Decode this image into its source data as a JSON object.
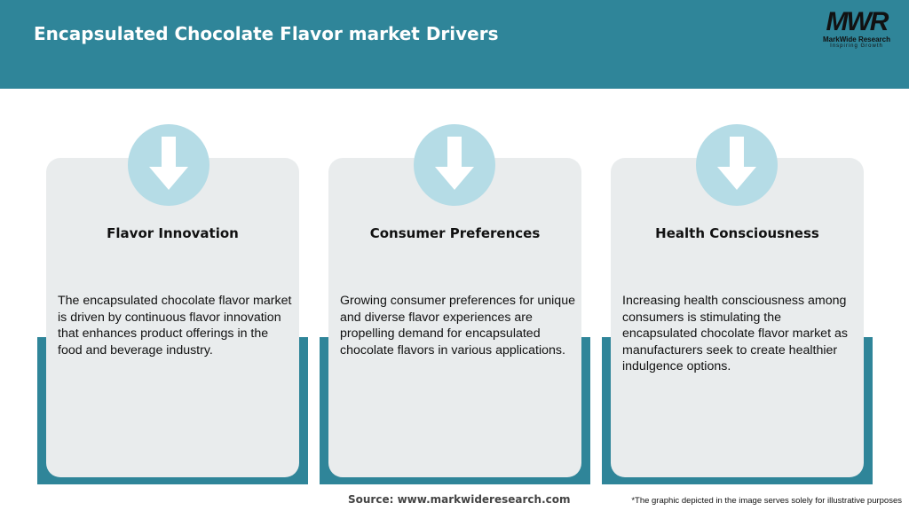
{
  "header": {
    "title": "Encapsulated Chocolate Flavor market Drivers"
  },
  "logo": {
    "mark": "MWR",
    "name": "MarkWide Research",
    "tagline": "Inspiring Growth"
  },
  "colors": {
    "header": "#2f8599",
    "circle": "#b5dce6",
    "card": "#e9eced"
  },
  "cards": [
    {
      "icon": "arrow-down-icon",
      "title": "Flavor Innovation",
      "text": "The encapsulated chocolate flavor market is driven by continuous flavor innovation that enhances product offerings in the food and beverage industry."
    },
    {
      "icon": "arrow-down-icon",
      "title": "Consumer Preferences",
      "text": "Growing consumer preferences for unique and diverse flavor experiences are propelling demand for encapsulated chocolate flavors in various applications."
    },
    {
      "icon": "arrow-down-icon",
      "title": "Health Consciousness",
      "text": "Increasing health consciousness among consumers is stimulating the encapsulated chocolate flavor market as manufacturers seek to create healthier indulgence options."
    }
  ],
  "footer": {
    "source": "Source: www.markwideresearch.com",
    "note": "*The graphic depicted in the image serves solely for illustrative purposes"
  }
}
